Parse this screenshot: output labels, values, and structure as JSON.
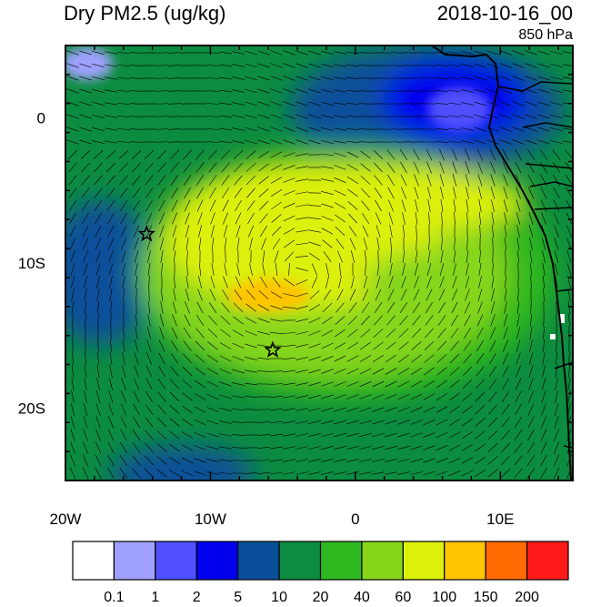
{
  "title": "Dry PM2.5 (ug/kg)",
  "datetime": "2018-10-16_00",
  "level": "850 hPa",
  "map": {
    "lon_range": [
      -20,
      15
    ],
    "lat_range": [
      -25,
      5
    ],
    "lon_ticks": [
      {
        "value": -20,
        "label": "20W"
      },
      {
        "value": -10,
        "label": "10W"
      },
      {
        "value": 0,
        "label": "0"
      },
      {
        "value": 10,
        "label": "10E"
      }
    ],
    "lat_ticks": [
      {
        "value": 0,
        "label": "0"
      },
      {
        "value": -10,
        "label": "10S"
      },
      {
        "value": -20,
        "label": "20S"
      }
    ],
    "stars": [
      {
        "lon": -14.4,
        "lat": -8.0
      },
      {
        "lon": -5.7,
        "lat": -16.0
      }
    ],
    "colorbar": {
      "colors": [
        "#ffffff",
        "#a0a0ff",
        "#5050ff",
        "#0000ee",
        "#0a4f9a",
        "#0c8c40",
        "#2db81f",
        "#85d61a",
        "#dcf00a",
        "#ffc400",
        "#ff6a00",
        "#ff1a1a"
      ],
      "labels": [
        "0.1",
        "1",
        "2",
        "5",
        "10",
        "20",
        "40",
        "60",
        "100",
        "150",
        "200"
      ]
    }
  }
}
